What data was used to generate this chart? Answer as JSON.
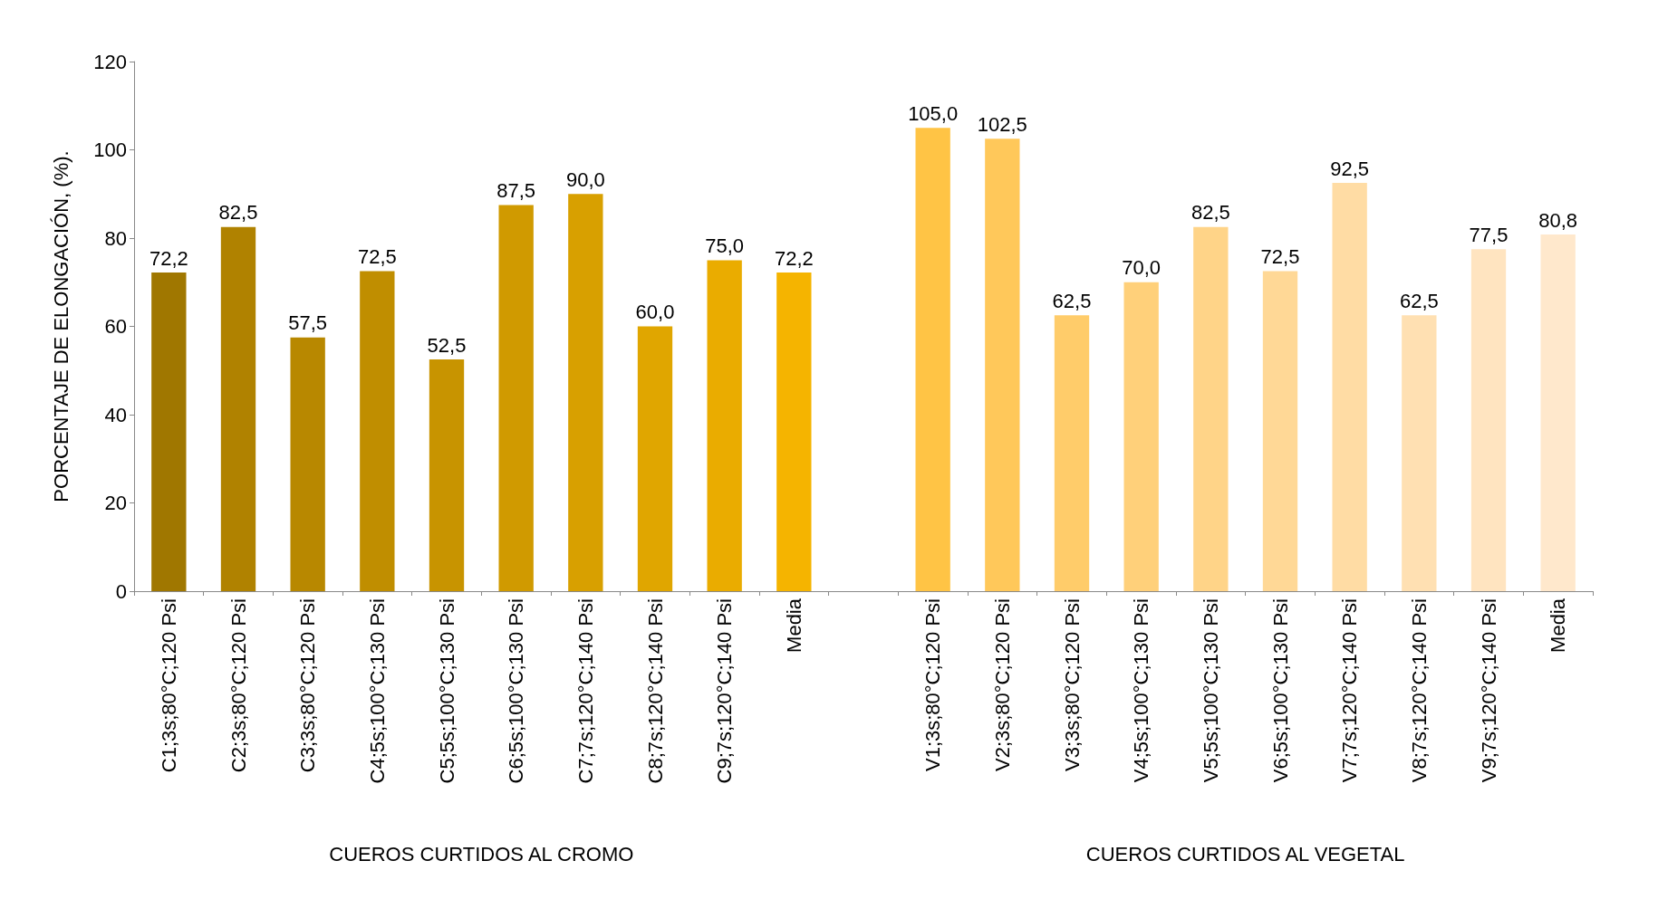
{
  "chart_data": {
    "type": "bar",
    "ylabel": "PORCENTAJE DE ELONGACIÓN, (%).",
    "categories": [
      "C1;3s;80°C;120 Psi",
      "C2;3s;80°C;120 Psi",
      "C3;3s;80°C;120 Psi",
      "C4;5s;100°C;130 Psi",
      "C5;5s;100°C;130 Psi",
      "C6;5s;100°C;130 Psi",
      "C7;7s;120°C;140 Psi",
      "C8;7s;120°C;140 Psi",
      "C9;7s;120°C;140 Psi",
      "Media",
      null,
      "V1;3s;80°C;120 Psi",
      "V2;3s;80°C;120 Psi",
      "V3;3s;80°C;120 Psi",
      "V4;5s;100°C;130 Psi",
      "V5;5s;100°C;130 Psi",
      "V6;5s;100°C;130 Psi",
      "V7;7s;120°C;140 Psi",
      "V8;7s;120°C;140 Psi",
      "V9;7s;120°C;140 Psi",
      "Media"
    ],
    "values": [
      72.2,
      82.5,
      57.5,
      72.5,
      52.5,
      87.5,
      90.0,
      60.0,
      75.0,
      72.2,
      null,
      105.0,
      102.5,
      62.5,
      70.0,
      82.5,
      72.5,
      92.5,
      62.5,
      77.5,
      80.8
    ],
    "value_labels": [
      "72,2",
      "82,5",
      "57,5",
      "72,5",
      "52,5",
      "87,5",
      "90,0",
      "60,0",
      "75,0",
      "72,2",
      null,
      "105,0",
      "102,5",
      "62,5",
      "70,0",
      "82,5",
      "72,5",
      "92,5",
      "62,5",
      "77,5",
      "80,8"
    ],
    "colors": [
      "#a07700",
      "#b08200",
      "#b88800",
      "#c08e00",
      "#c89400",
      "#d09a00",
      "#d8a000",
      "#e0a600",
      "#eaac00",
      "#f5b400",
      "#ffffff",
      "#ffc445",
      "#ffc85a",
      "#ffcc6a",
      "#ffd07a",
      "#ffd488",
      "#ffd896",
      "#ffdca4",
      "#ffe0b2",
      "#ffe4c0",
      "#ffe8cc"
    ],
    "ylim": [
      0,
      120
    ],
    "yticks": [
      0,
      20,
      40,
      60,
      80,
      100,
      120
    ],
    "annotations": [
      "CUEROS CURTIDOS AL CROMO",
      "CUEROS CURTIDOS AL VEGETAL"
    ]
  }
}
